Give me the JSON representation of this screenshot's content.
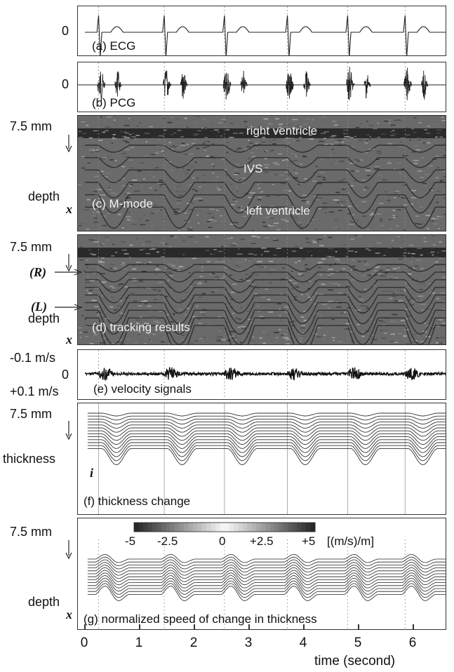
{
  "panels": {
    "a": {
      "title": "(a) ECG",
      "zero": "0"
    },
    "b": {
      "title": "(b) PCG",
      "zero": "0"
    },
    "c": {
      "title": "(c) M-mode",
      "depth_top": "7.5 mm",
      "depth_label": "depth",
      "x_symbol": "x",
      "labels": {
        "rv": "right ventricle",
        "ivs": "IVS",
        "lv": "left ventricle"
      }
    },
    "d": {
      "title": "(d) tracking results",
      "depth_top": "7.5 mm",
      "depth_label": "depth",
      "x_symbol": "x",
      "r_mark": "(R)",
      "l_mark": "(L)"
    },
    "e": {
      "title": "(e) velocity signals",
      "top_label": "-0.1 m/s",
      "zero": "0",
      "bottom_label": "+0.1 m/s"
    },
    "f": {
      "title": "(f) thickness change",
      "depth_top": "7.5 mm",
      "side_label": "thickness",
      "i_symbol": "i"
    },
    "g": {
      "title": "(g) normalized speed of change in thickness",
      "depth_top": "7.5 mm",
      "depth_label": "depth",
      "x_symbol": "x",
      "colorbar": {
        "ticks": [
          "-5",
          "-2.5",
          "0",
          "+2.5",
          "+5"
        ],
        "unit": "[(m/s)/m]"
      }
    }
  },
  "chart_data": {
    "type": "line",
    "xlabel": "time (second)",
    "x_ticks": [
      "0",
      "1",
      "2",
      "3",
      "4",
      "5",
      "6"
    ],
    "xlim": [
      0,
      6.8
    ],
    "beat_times": [
      0.25,
      1.45,
      2.55,
      3.7,
      4.8,
      5.85
    ],
    "colorbar_range": [
      -5,
      5
    ]
  },
  "colors": {
    "frame": "#333333",
    "trace": "#222222",
    "image_bg": "#6a6a6a",
    "image_dark": "#1e1e1e"
  }
}
